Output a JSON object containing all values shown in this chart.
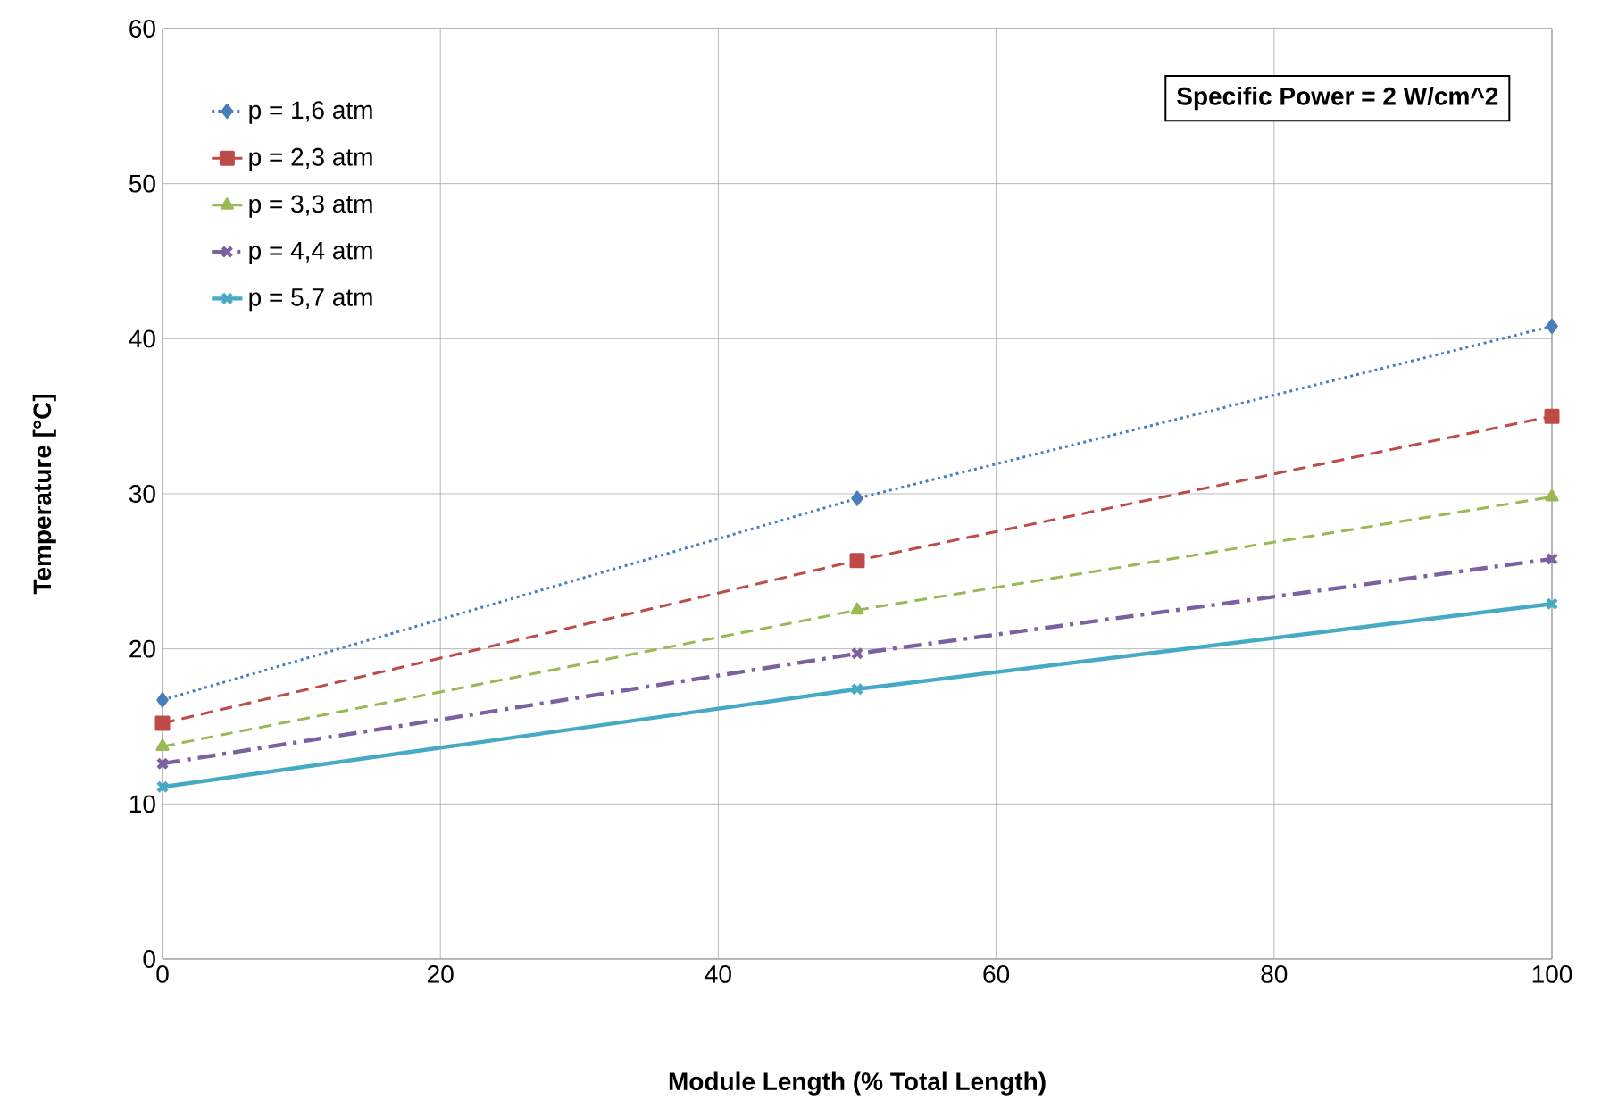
{
  "chart_data": {
    "type": "line",
    "xlabel": "Module Length (% Total Length)",
    "ylabel": "Temperature [°C]",
    "annotations": [
      "Specific Power = 2 W/cm^2"
    ],
    "x": [
      0,
      50,
      100
    ],
    "xlim": [
      0,
      100
    ],
    "xticks": [
      0,
      20,
      40,
      60,
      80,
      100
    ],
    "ylim": [
      0,
      60
    ],
    "yticks": [
      0,
      10,
      20,
      30,
      40,
      50,
      60
    ],
    "grid": true,
    "legend": "top left",
    "series": [
      {
        "name": "p = 1,6 atm",
        "color": "#4a7ebb",
        "values": [
          16.7,
          29.7,
          40.8
        ],
        "marker": "diamond",
        "line_style": "dotted"
      },
      {
        "name": "p = 2,3 atm",
        "color": "#be4b48",
        "values": [
          15.2,
          25.7,
          35.0
        ],
        "marker": "square",
        "line_style": "dashed"
      },
      {
        "name": "p = 3,3 atm",
        "color": "#98b954",
        "values": [
          13.7,
          22.5,
          29.8
        ],
        "marker": "triangle",
        "line_style": "dashed"
      },
      {
        "name": "p = 4,4 atm",
        "color": "#7d60a0",
        "values": [
          12.6,
          19.7,
          25.8
        ],
        "marker": "cross",
        "line_style": "dashdot"
      },
      {
        "name": "p = 5,7 atm",
        "color": "#46aac5",
        "values": [
          11.1,
          17.4,
          22.9
        ],
        "marker": "cross",
        "line_style": "solid"
      }
    ]
  }
}
